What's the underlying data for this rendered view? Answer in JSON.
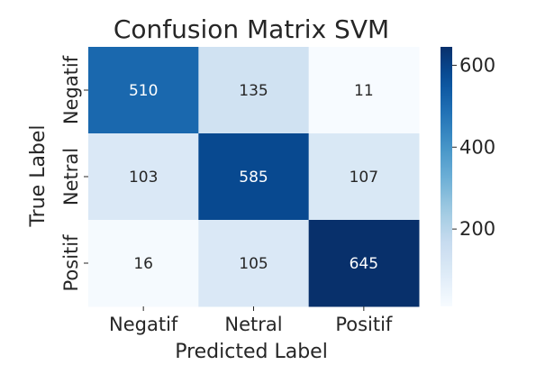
{
  "chart_data": {
    "type": "heatmap",
    "title": "Confusion Matrix SVM",
    "xlabel": "Predicted Label",
    "ylabel": "True Label",
    "x_categories": [
      "Negatif",
      "Netral",
      "Positif"
    ],
    "y_categories": [
      "Negatif",
      "Netral",
      "Positif"
    ],
    "values": [
      [
        510,
        135,
        11
      ],
      [
        103,
        585,
        107
      ],
      [
        16,
        105,
        645
      ]
    ],
    "colormap": "Blues",
    "colorbar": {
      "range": [
        11,
        645
      ],
      "ticks": [
        200,
        400,
        600
      ]
    },
    "grid": false
  }
}
